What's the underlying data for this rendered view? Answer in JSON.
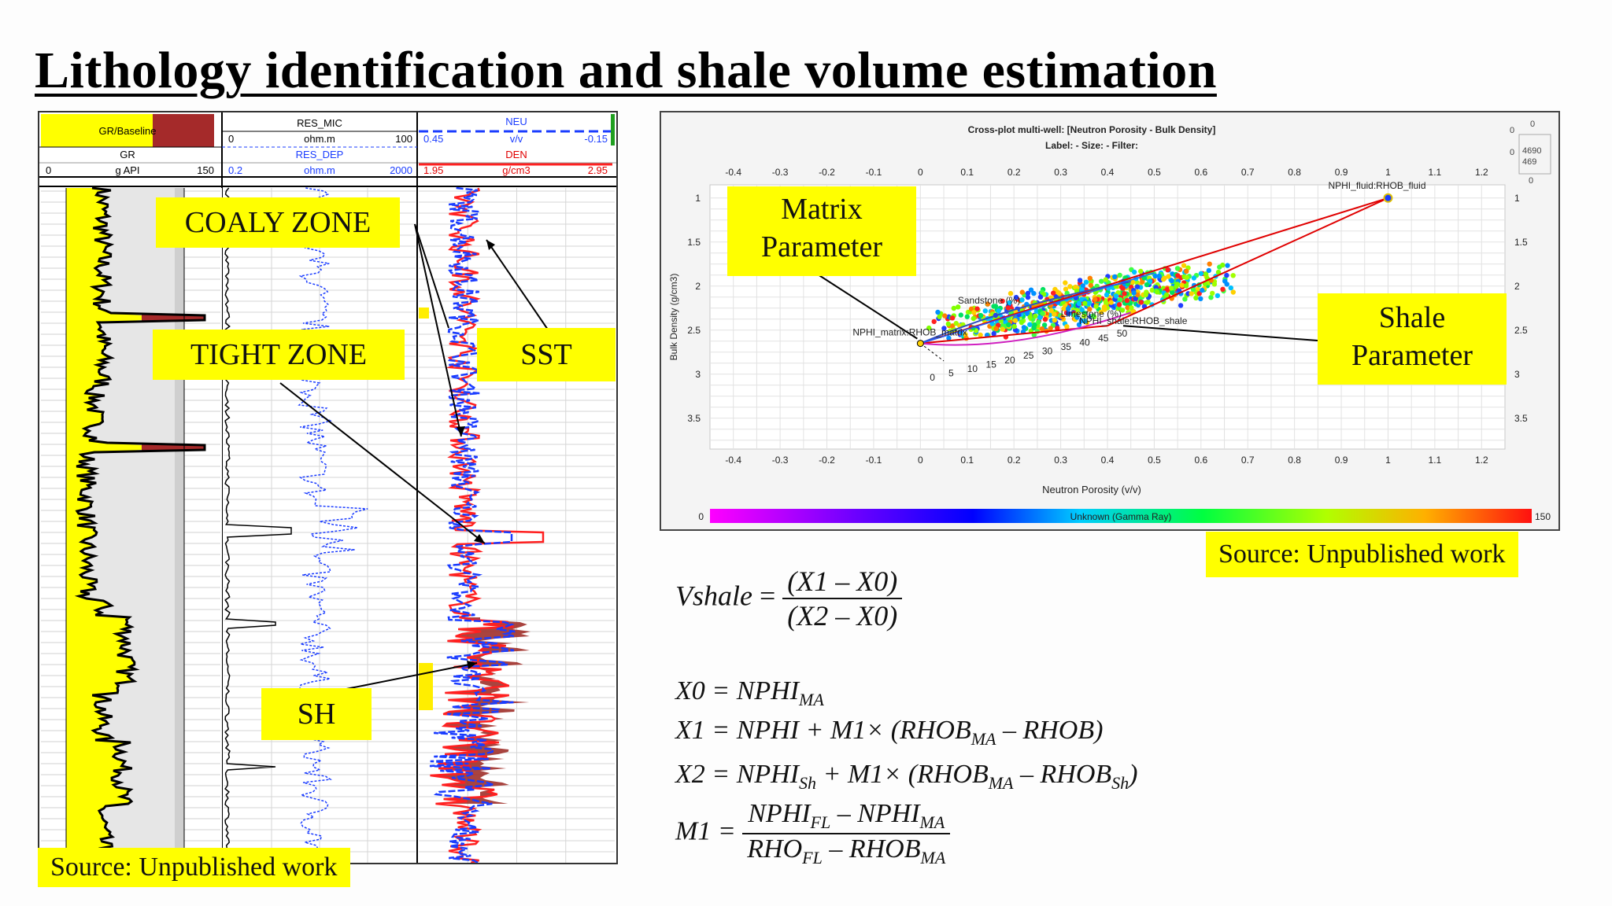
{
  "title": "Lithology identification and shale volume estimation",
  "well_log": {
    "track1": {
      "curve1": "GR/Baseline",
      "curve2": "GR",
      "min": "0",
      "unit": "g API",
      "max": "150"
    },
    "track2": {
      "curve1": "RES_MIC",
      "min1": "0",
      "unit1": "ohm.m",
      "max1": "100",
      "curve2": "RES_DEP",
      "min2": "0.2",
      "unit2": "ohm.m",
      "max2": "2000"
    },
    "track3": {
      "curve1": "NEU",
      "min1": "0.45",
      "unit1": "v/v",
      "max1": "-0.15",
      "curve2": "DEN",
      "min2": "1.95",
      "unit2": "g/cm3",
      "max2": "2.95"
    },
    "callouts": {
      "coaly": "COALY ZONE",
      "tight": "TIGHT ZONE",
      "sst": "SST",
      "sh": "SH"
    },
    "source": "Source: Unpublished work"
  },
  "crossplot": {
    "title": "Cross-plot multi-well: [Neutron Porosity - Bulk Density]",
    "subtitle": "Label:  -  Size:  -  Filter:",
    "xlabel": "Neutron Porosity (v/v)",
    "ylabel": "Bulk Density (g/cm3)",
    "x_ticks": [
      "-0.4",
      "-0.3",
      "-0.2",
      "-0.1",
      "0",
      "0.1",
      "0.2",
      "0.3",
      "0.4",
      "0.5",
      "0.6",
      "0.7",
      "0.8",
      "0.9",
      "1",
      "1.1",
      "1.2"
    ],
    "y_ticks": [
      "1",
      "1.5",
      "2",
      "2.5",
      "3",
      "3.5"
    ],
    "colorbar_label": "Unknown (Gamma Ray)",
    "colorbar_min": "0",
    "colorbar_max": "150",
    "point_fluid": "NPHI_fluid:RHOB_fluid",
    "point_matrix": "NPHI_matrix:RHOB_matrix",
    "point_shale": "NPHI_shale:RHOB_shale",
    "label_sandstone": "Sandstone (%)",
    "label_limestone": "Limestone (%)",
    "porosity_labels": [
      "0",
      "5",
      "10",
      "15",
      "20",
      "25",
      "30",
      "35",
      "40",
      "45",
      "50"
    ],
    "callout_matrix": [
      "Matrix",
      "Parameter"
    ],
    "callout_shale": [
      "Shale",
      "Parameter"
    ],
    "source": "Source: Unpublished work",
    "topright_values": [
      "0",
      "0",
      "0",
      "4690",
      "469",
      "0"
    ],
    "colors": {
      "fluid_line": "#e00000",
      "sand_line": "#3050c0",
      "lime_line": "#d020c0"
    }
  },
  "equations": {
    "vshale_lhs": "Vshale",
    "vshale_num": "(X1 – X0)",
    "vshale_den": "(X2 – X0)",
    "x0_lhs": "X0 = NPHI",
    "x0_sub": "MA",
    "x1_a": "X1 = NPHI + M1× (RHOB",
    "x1_sub": "MA",
    "x1_b": " – RHOB)",
    "x2_a": "X2 = NPHI",
    "x2_sub1": "Sh",
    "x2_b": "  + M1× (RHOB",
    "x2_sub2": "MA",
    "x2_c": " – RHOB",
    "x2_sub3": "Sh",
    "x2_d": ")",
    "m1_lhs": "M1 =",
    "m1_num_a": "NPHI",
    "m1_num_s1": "FL",
    "m1_num_b": " – NPHI",
    "m1_num_s2": "MA",
    "m1_den_a": "RHO",
    "m1_den_s1": "FL",
    "m1_den_b": " – RHOB",
    "m1_den_s2": "MA"
  }
}
